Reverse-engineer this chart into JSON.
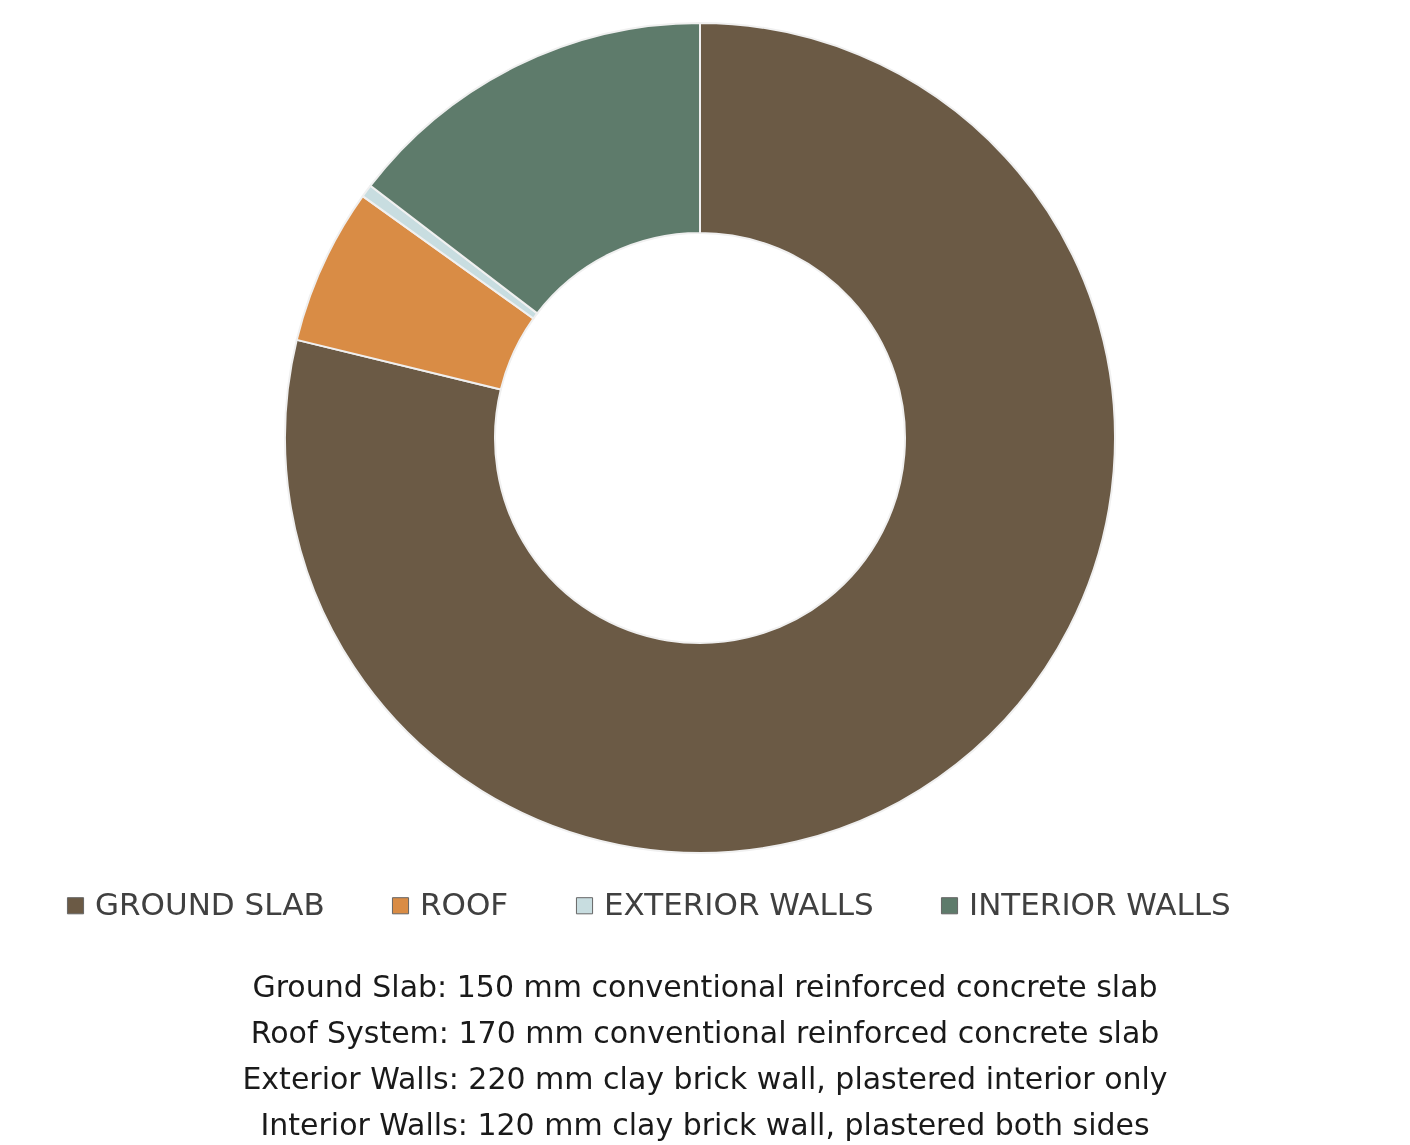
{
  "chart_data": {
    "type": "donut",
    "categories": [
      "GROUND SLAB",
      "ROOF",
      "EXTERIOR WALLS",
      "INTERIOR WALLS"
    ],
    "values": [
      78.8,
      6.1,
      0.5,
      14.6
    ],
    "colors": [
      "#6b5a45",
      "#d98c45",
      "#c8dde0",
      "#5e7b6b"
    ],
    "legend": "bottom",
    "annotations": [
      "Ground Slab: 150 mm conventional reinforced concrete slab",
      "Roof System: 170 mm conventional reinforced concrete slab",
      "Exterior Walls:    220 mm clay brick wall, plastered interior only",
      "Interior Walls: 120 mm clay brick wall, plastered both sides"
    ]
  }
}
